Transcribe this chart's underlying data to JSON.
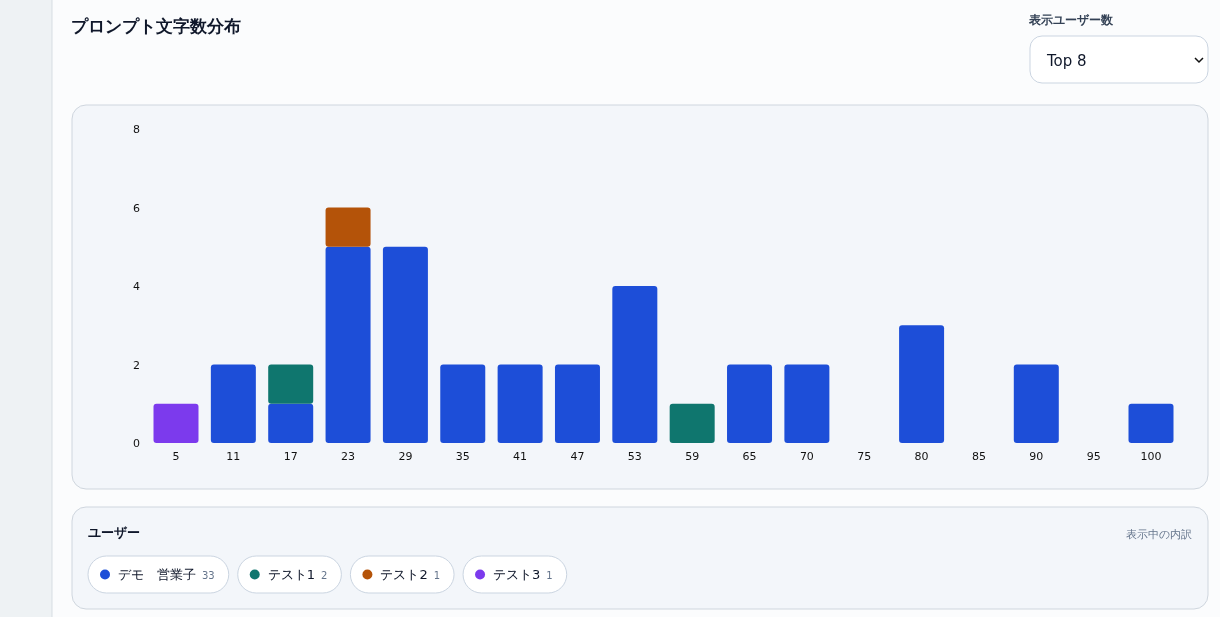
{
  "chart_data": {
    "type": "bar",
    "title": "プロンプト文字数分布",
    "legend_title": "ユーザー",
    "annotations": [
      "表示ユーザー数",
      "Top 8",
      "表示中の内訳",
      "33",
      "2",
      "1",
      "1"
    ],
    "categories": [
      "5",
      "11",
      "17",
      "23",
      "29",
      "35",
      "41",
      "47",
      "53",
      "59",
      "65",
      "70",
      "75",
      "80",
      "85",
      "90",
      "95",
      "100"
    ],
    "series": [
      {
        "name": "デモ　営業子",
        "color": "#1d4ed8",
        "values": [
          0,
          2,
          1,
          5,
          5,
          2,
          2,
          2,
          4,
          0,
          2,
          2,
          0,
          3,
          0,
          2,
          0,
          1
        ]
      },
      {
        "name": "テスト1",
        "color": "#0f766e",
        "values": [
          0,
          0,
          1,
          0,
          0,
          0,
          0,
          0,
          0,
          1,
          0,
          0,
          0,
          0,
          0,
          0,
          0,
          0
        ]
      },
      {
        "name": "テスト2",
        "color": "#b45309",
        "values": [
          0,
          0,
          0,
          1,
          0,
          0,
          0,
          0,
          0,
          0,
          0,
          0,
          0,
          0,
          0,
          0,
          0,
          0
        ]
      },
      {
        "name": "テスト3",
        "color": "#7c3aed",
        "values": [
          1,
          0,
          0,
          0,
          0,
          0,
          0,
          0,
          0,
          0,
          0,
          0,
          0,
          0,
          0,
          0,
          0,
          0
        ]
      }
    ],
    "stacked": true,
    "ylim": [
      0,
      8
    ],
    "yticks": [
      0,
      2,
      4,
      6,
      8
    ],
    "grid": false,
    "legend": "bottom"
  }
}
